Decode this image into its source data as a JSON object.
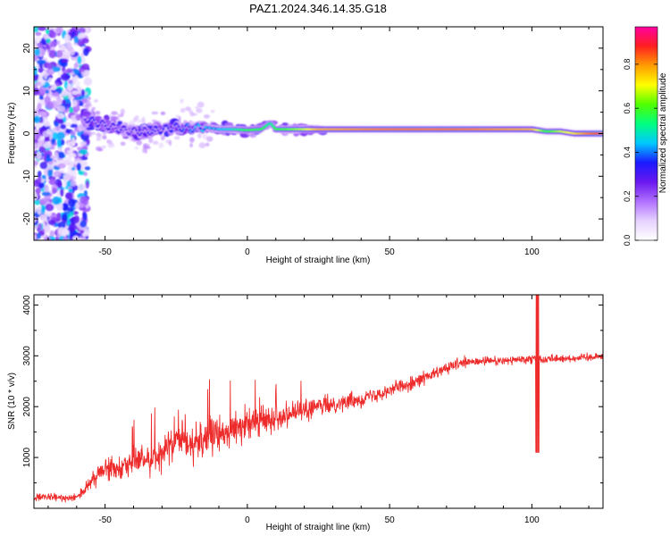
{
  "title": "PAZ1.2024.346.14.35.G18",
  "chart_data": [
    {
      "type": "heatmap",
      "xlabel": "Height of straight line (km)",
      "ylabel": "Frequency (Hz)",
      "xlim": [
        -75,
        125
      ],
      "ylim": [
        -25,
        25
      ],
      "xticks": [
        -50,
        0,
        50,
        100
      ],
      "yticks": [
        -20,
        -10,
        0,
        10,
        20
      ],
      "grid": false,
      "colorbar": {
        "label": "Normalized spectral amplitude",
        "range": [
          0,
          0.97
        ],
        "ticks": [
          "0.0",
          "0.2",
          "0.4",
          "0.6",
          "0.8"
        ],
        "colormap": [
          "#ffffff",
          "#e6d2ff",
          "#b070ff",
          "#6a18ef",
          "#1a1aff",
          "#00c8ff",
          "#00ff80",
          "#50ff00",
          "#ffff00",
          "#ff9c00",
          "#ff2020",
          "#ff00a0"
        ]
      },
      "ridge": {
        "x": [
          -58,
          -55,
          -50,
          -45,
          -40,
          -35,
          -30,
          -25,
          -20,
          -15,
          -10,
          -5,
          0,
          5,
          8,
          10,
          15,
          20,
          25,
          50,
          75,
          100,
          105,
          110,
          115,
          120,
          125
        ],
        "frequency": [
          4,
          3,
          2,
          1,
          0.5,
          0.5,
          1,
          1.5,
          1.2,
          1.5,
          1,
          1,
          0.8,
          1,
          2.5,
          1,
          1,
          1,
          1,
          1,
          1,
          1,
          0.5,
          0.5,
          0,
          0,
          0
        ],
        "amplitude": [
          0.3,
          0.35,
          0.3,
          0.3,
          0.3,
          0.3,
          0.35,
          0.35,
          0.4,
          0.45,
          0.45,
          0.5,
          0.6,
          0.6,
          0.5,
          0.6,
          0.65,
          0.7,
          0.8,
          0.85,
          0.85,
          0.8,
          0.6,
          0.7,
          0.75,
          0.85,
          0.9
        ]
      }
    },
    {
      "type": "line",
      "xlabel": "Height of straight line (km)",
      "ylabel": "SNR (10 * v/v)",
      "xlim": [
        -75,
        125
      ],
      "ylim": [
        0,
        4200
      ],
      "xticks": [
        -50,
        0,
        50,
        100
      ],
      "yticks": [
        1000,
        2000,
        3000,
        4000
      ],
      "grid": false,
      "series": [
        {
          "color": "#ee2b2b",
          "x": [
            -75,
            -70,
            -65,
            -60,
            -56,
            -52,
            -48,
            -44,
            -40,
            -36,
            -32,
            -28,
            -24,
            -20,
            -16,
            -12,
            -8,
            -4,
            0,
            4,
            8,
            12,
            16,
            20,
            25,
            30,
            35,
            40,
            45,
            50,
            55,
            60,
            65,
            70,
            75,
            80,
            85,
            90,
            95,
            100,
            102,
            104,
            106,
            110,
            115,
            120,
            125
          ],
          "values": [
            200,
            220,
            200,
            230,
            420,
            700,
            800,
            850,
            900,
            960,
            1020,
            1150,
            1250,
            1300,
            1350,
            1420,
            1500,
            1580,
            1650,
            1700,
            1770,
            1830,
            1880,
            1930,
            2000,
            2050,
            2100,
            2150,
            2250,
            2330,
            2420,
            2520,
            2620,
            2750,
            2850,
            2880,
            2900,
            2900,
            2920,
            2950,
            3000,
            2900,
            2950,
            2950,
            2950,
            2980,
            3000
          ],
          "spread": [
            120,
            120,
            120,
            120,
            250,
            350,
            400,
            420,
            450,
            480,
            520,
            600,
            650,
            650,
            650,
            600,
            550,
            500,
            480,
            450,
            420,
            400,
            380,
            350,
            320,
            300,
            280,
            260,
            250,
            240,
            230,
            220,
            210,
            200,
            180,
            160,
            150,
            150,
            150,
            150,
            150,
            150,
            140,
            130,
            130,
            130,
            130
          ]
        }
      ]
    }
  ]
}
